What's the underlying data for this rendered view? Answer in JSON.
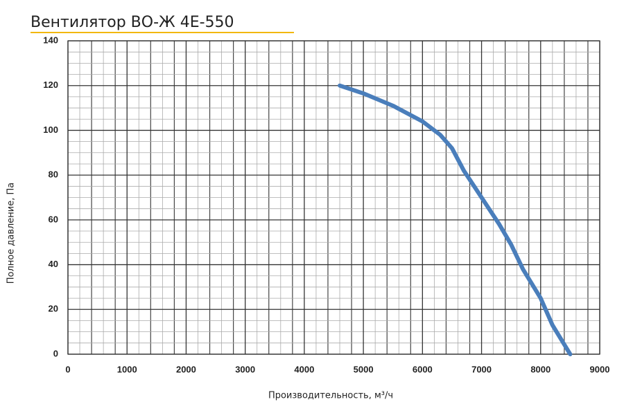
{
  "chart_data": {
    "type": "line",
    "title": "Вентилятор ВО-Ж 4Е-550",
    "x_label": "Производительность, м³/ч",
    "y_label": "Полное давление, Па",
    "x": [
      4600,
      5000,
      5500,
      6000,
      6300,
      6500,
      6700,
      7000,
      7300,
      7500,
      7700,
      8000,
      8200,
      8500
    ],
    "series": [
      {
        "name": "ВО-Ж 4Е-550",
        "color": "#4a7ebb",
        "values": [
          120,
          116.5,
          111,
          104,
          98,
          92,
          82,
          70,
          58,
          49,
          38,
          25,
          13,
          0
        ]
      }
    ],
    "xlim": [
      0,
      9000
    ],
    "xticks": [
      0,
      1000,
      2000,
      3000,
      4000,
      5000,
      6000,
      7000,
      8000,
      9000
    ],
    "ylim": [
      0,
      140
    ],
    "yticks": [
      0,
      20,
      40,
      60,
      80,
      100,
      120,
      140
    ],
    "grid": true
  }
}
